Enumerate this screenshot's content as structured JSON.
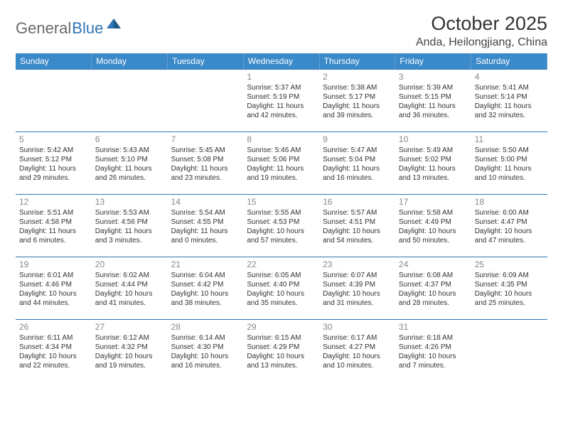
{
  "logo": {
    "part1": "General",
    "part2": "Blue"
  },
  "title": "October 2025",
  "location": "Anda, Heilongjiang, China",
  "colors": {
    "header_bg": "#3a89c9",
    "border": "#2f77b6",
    "logo_gray": "#6a6a6a",
    "logo_blue": "#2f77b6"
  },
  "weekdays": [
    "Sunday",
    "Monday",
    "Tuesday",
    "Wednesday",
    "Thursday",
    "Friday",
    "Saturday"
  ],
  "weeks": [
    [
      null,
      null,
      null,
      {
        "n": "1",
        "sr": "Sunrise: 5:37 AM",
        "ss": "Sunset: 5:19 PM",
        "dl1": "Daylight: 11 hours",
        "dl2": "and 42 minutes."
      },
      {
        "n": "2",
        "sr": "Sunrise: 5:38 AM",
        "ss": "Sunset: 5:17 PM",
        "dl1": "Daylight: 11 hours",
        "dl2": "and 39 minutes."
      },
      {
        "n": "3",
        "sr": "Sunrise: 5:39 AM",
        "ss": "Sunset: 5:15 PM",
        "dl1": "Daylight: 11 hours",
        "dl2": "and 36 minutes."
      },
      {
        "n": "4",
        "sr": "Sunrise: 5:41 AM",
        "ss": "Sunset: 5:14 PM",
        "dl1": "Daylight: 11 hours",
        "dl2": "and 32 minutes."
      }
    ],
    [
      {
        "n": "5",
        "sr": "Sunrise: 5:42 AM",
        "ss": "Sunset: 5:12 PM",
        "dl1": "Daylight: 11 hours",
        "dl2": "and 29 minutes."
      },
      {
        "n": "6",
        "sr": "Sunrise: 5:43 AM",
        "ss": "Sunset: 5:10 PM",
        "dl1": "Daylight: 11 hours",
        "dl2": "and 26 minutes."
      },
      {
        "n": "7",
        "sr": "Sunrise: 5:45 AM",
        "ss": "Sunset: 5:08 PM",
        "dl1": "Daylight: 11 hours",
        "dl2": "and 23 minutes."
      },
      {
        "n": "8",
        "sr": "Sunrise: 5:46 AM",
        "ss": "Sunset: 5:06 PM",
        "dl1": "Daylight: 11 hours",
        "dl2": "and 19 minutes."
      },
      {
        "n": "9",
        "sr": "Sunrise: 5:47 AM",
        "ss": "Sunset: 5:04 PM",
        "dl1": "Daylight: 11 hours",
        "dl2": "and 16 minutes."
      },
      {
        "n": "10",
        "sr": "Sunrise: 5:49 AM",
        "ss": "Sunset: 5:02 PM",
        "dl1": "Daylight: 11 hours",
        "dl2": "and 13 minutes."
      },
      {
        "n": "11",
        "sr": "Sunrise: 5:50 AM",
        "ss": "Sunset: 5:00 PM",
        "dl1": "Daylight: 11 hours",
        "dl2": "and 10 minutes."
      }
    ],
    [
      {
        "n": "12",
        "sr": "Sunrise: 5:51 AM",
        "ss": "Sunset: 4:58 PM",
        "dl1": "Daylight: 11 hours",
        "dl2": "and 6 minutes."
      },
      {
        "n": "13",
        "sr": "Sunrise: 5:53 AM",
        "ss": "Sunset: 4:56 PM",
        "dl1": "Daylight: 11 hours",
        "dl2": "and 3 minutes."
      },
      {
        "n": "14",
        "sr": "Sunrise: 5:54 AM",
        "ss": "Sunset: 4:55 PM",
        "dl1": "Daylight: 11 hours",
        "dl2": "and 0 minutes."
      },
      {
        "n": "15",
        "sr": "Sunrise: 5:55 AM",
        "ss": "Sunset: 4:53 PM",
        "dl1": "Daylight: 10 hours",
        "dl2": "and 57 minutes."
      },
      {
        "n": "16",
        "sr": "Sunrise: 5:57 AM",
        "ss": "Sunset: 4:51 PM",
        "dl1": "Daylight: 10 hours",
        "dl2": "and 54 minutes."
      },
      {
        "n": "17",
        "sr": "Sunrise: 5:58 AM",
        "ss": "Sunset: 4:49 PM",
        "dl1": "Daylight: 10 hours",
        "dl2": "and 50 minutes."
      },
      {
        "n": "18",
        "sr": "Sunrise: 6:00 AM",
        "ss": "Sunset: 4:47 PM",
        "dl1": "Daylight: 10 hours",
        "dl2": "and 47 minutes."
      }
    ],
    [
      {
        "n": "19",
        "sr": "Sunrise: 6:01 AM",
        "ss": "Sunset: 4:46 PM",
        "dl1": "Daylight: 10 hours",
        "dl2": "and 44 minutes."
      },
      {
        "n": "20",
        "sr": "Sunrise: 6:02 AM",
        "ss": "Sunset: 4:44 PM",
        "dl1": "Daylight: 10 hours",
        "dl2": "and 41 minutes."
      },
      {
        "n": "21",
        "sr": "Sunrise: 6:04 AM",
        "ss": "Sunset: 4:42 PM",
        "dl1": "Daylight: 10 hours",
        "dl2": "and 38 minutes."
      },
      {
        "n": "22",
        "sr": "Sunrise: 6:05 AM",
        "ss": "Sunset: 4:40 PM",
        "dl1": "Daylight: 10 hours",
        "dl2": "and 35 minutes."
      },
      {
        "n": "23",
        "sr": "Sunrise: 6:07 AM",
        "ss": "Sunset: 4:39 PM",
        "dl1": "Daylight: 10 hours",
        "dl2": "and 31 minutes."
      },
      {
        "n": "24",
        "sr": "Sunrise: 6:08 AM",
        "ss": "Sunset: 4:37 PM",
        "dl1": "Daylight: 10 hours",
        "dl2": "and 28 minutes."
      },
      {
        "n": "25",
        "sr": "Sunrise: 6:09 AM",
        "ss": "Sunset: 4:35 PM",
        "dl1": "Daylight: 10 hours",
        "dl2": "and 25 minutes."
      }
    ],
    [
      {
        "n": "26",
        "sr": "Sunrise: 6:11 AM",
        "ss": "Sunset: 4:34 PM",
        "dl1": "Daylight: 10 hours",
        "dl2": "and 22 minutes."
      },
      {
        "n": "27",
        "sr": "Sunrise: 6:12 AM",
        "ss": "Sunset: 4:32 PM",
        "dl1": "Daylight: 10 hours",
        "dl2": "and 19 minutes."
      },
      {
        "n": "28",
        "sr": "Sunrise: 6:14 AM",
        "ss": "Sunset: 4:30 PM",
        "dl1": "Daylight: 10 hours",
        "dl2": "and 16 minutes."
      },
      {
        "n": "29",
        "sr": "Sunrise: 6:15 AM",
        "ss": "Sunset: 4:29 PM",
        "dl1": "Daylight: 10 hours",
        "dl2": "and 13 minutes."
      },
      {
        "n": "30",
        "sr": "Sunrise: 6:17 AM",
        "ss": "Sunset: 4:27 PM",
        "dl1": "Daylight: 10 hours",
        "dl2": "and 10 minutes."
      },
      {
        "n": "31",
        "sr": "Sunrise: 6:18 AM",
        "ss": "Sunset: 4:26 PM",
        "dl1": "Daylight: 10 hours",
        "dl2": "and 7 minutes."
      },
      null
    ]
  ]
}
